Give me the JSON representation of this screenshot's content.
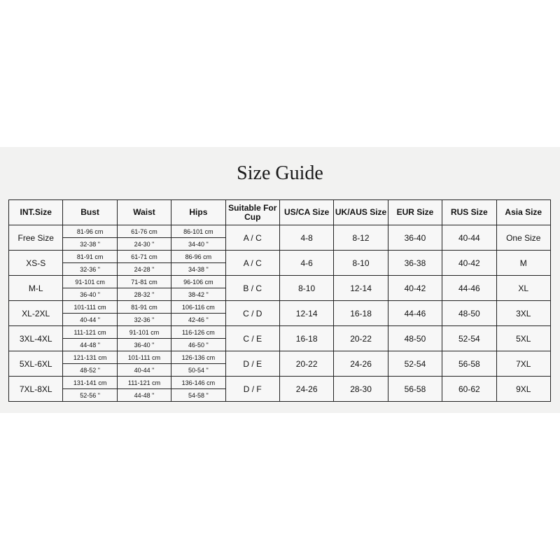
{
  "title": "Size Guide",
  "headers": [
    "INT.Size",
    "Bust",
    "Waist",
    "Hips",
    "Suitable For Cup",
    "US/CA Size",
    "UK/AUS Size",
    "EUR Size",
    "RUS Size",
    "Asia Size"
  ],
  "rows": [
    {
      "size": "Free Size",
      "bust_cm": "81-96 cm",
      "bust_in": "32-38 \"",
      "waist_cm": "61-76 cm",
      "waist_in": "24-30 \"",
      "hips_cm": "86-101 cm",
      "hips_in": "34-40 \"",
      "cup": "A / C",
      "us": "4-8",
      "uk": "8-12",
      "eur": "36-40",
      "rus": "40-44",
      "asia": "One Size"
    },
    {
      "size": "XS-S",
      "bust_cm": "81-91 cm",
      "bust_in": "32-36 \"",
      "waist_cm": "61-71 cm",
      "waist_in": "24-28 \"",
      "hips_cm": "86-96 cm",
      "hips_in": "34-38 \"",
      "cup": "A / C",
      "us": "4-6",
      "uk": "8-10",
      "eur": "36-38",
      "rus": "40-42",
      "asia": "M"
    },
    {
      "size": "M-L",
      "bust_cm": "91-101 cm",
      "bust_in": "36-40 \"",
      "waist_cm": "71-81 cm",
      "waist_in": "28-32 \"",
      "hips_cm": "96-106 cm",
      "hips_in": "38-42 \"",
      "cup": "B / C",
      "us": "8-10",
      "uk": "12-14",
      "eur": "40-42",
      "rus": "44-46",
      "asia": "XL"
    },
    {
      "size": "XL-2XL",
      "bust_cm": "101-111 cm",
      "bust_in": "40-44 \"",
      "waist_cm": "81-91 cm",
      "waist_in": "32-36 \"",
      "hips_cm": "106-116 cm",
      "hips_in": "42-46 \"",
      "cup": "C / D",
      "us": "12-14",
      "uk": "16-18",
      "eur": "44-46",
      "rus": "48-50",
      "asia": "3XL"
    },
    {
      "size": "3XL-4XL",
      "bust_cm": "111-121 cm",
      "bust_in": "44-48 \"",
      "waist_cm": "91-101 cm",
      "waist_in": "36-40 \"",
      "hips_cm": "116-126 cm",
      "hips_in": "46-50 \"",
      "cup": "C / E",
      "us": "16-18",
      "uk": "20-22",
      "eur": "48-50",
      "rus": "52-54",
      "asia": "5XL"
    },
    {
      "size": "5XL-6XL",
      "bust_cm": "121-131 cm",
      "bust_in": "48-52 \"",
      "waist_cm": "101-111 cm",
      "waist_in": "40-44 \"",
      "hips_cm": "126-136 cm",
      "hips_in": "50-54 \"",
      "cup": "D / E",
      "us": "20-22",
      "uk": "24-26",
      "eur": "52-54",
      "rus": "56-58",
      "asia": "7XL"
    },
    {
      "size": "7XL-8XL",
      "bust_cm": "131-141 cm",
      "bust_in": "52-56 \"",
      "waist_cm": "111-121 cm",
      "waist_in": "44-48 \"",
      "hips_cm": "136-146 cm",
      "hips_in": "54-58 \"",
      "cup": "D / F",
      "us": "24-26",
      "uk": "28-30",
      "eur": "56-58",
      "rus": "60-62",
      "asia": "9XL"
    }
  ]
}
